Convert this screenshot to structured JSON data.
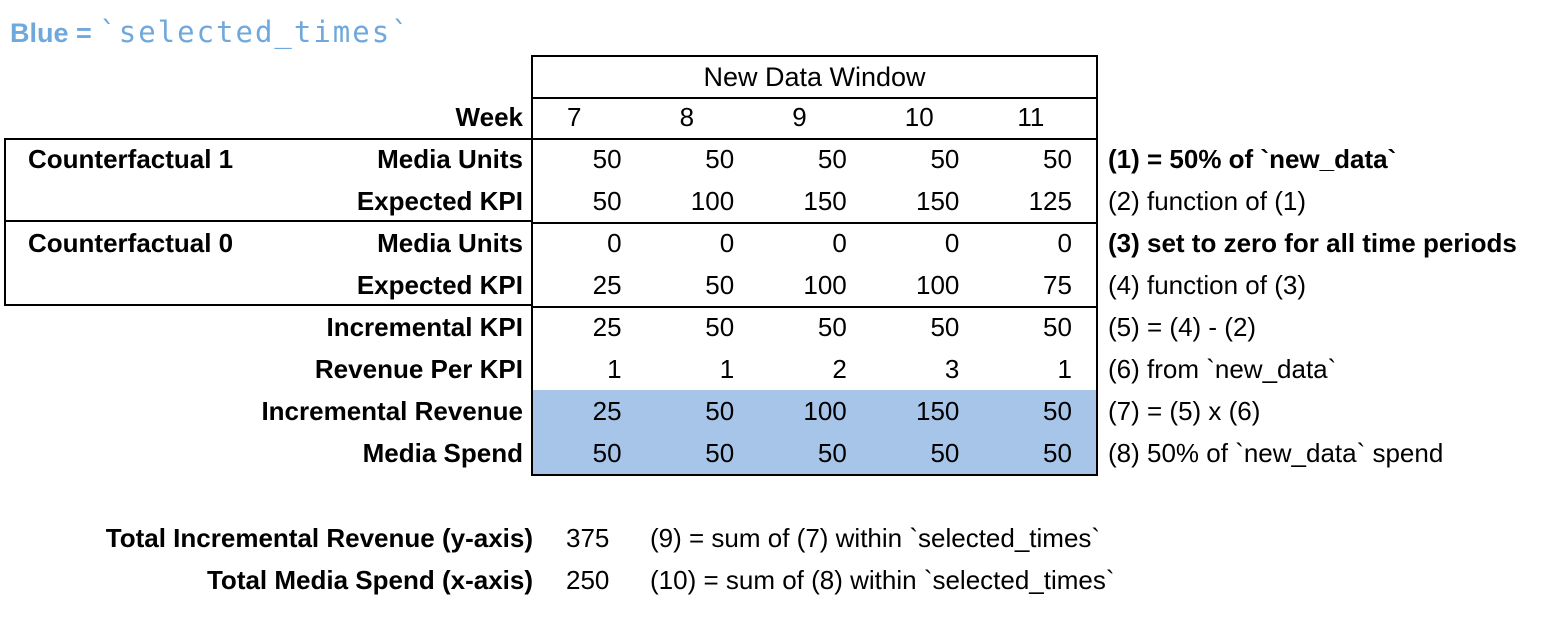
{
  "legend": {
    "label": "Blue =",
    "code": "`selected_times`"
  },
  "table": {
    "header": "New Data Window",
    "week_label": "Week",
    "weeks": [
      "7",
      "8",
      "9",
      "10",
      "11"
    ],
    "group1_label": "Counterfactual 1",
    "group2_label": "Counterfactual 0",
    "rows": [
      {
        "label": "Media Units",
        "values": [
          "50",
          "50",
          "50",
          "50",
          "50"
        ],
        "annotation": "(1) = 50% of `new_data`"
      },
      {
        "label": "Expected KPI",
        "values": [
          "50",
          "100",
          "150",
          "150",
          "125"
        ],
        "annotation": "(2) function of (1)"
      },
      {
        "label": "Media Units",
        "values": [
          "0",
          "0",
          "0",
          "0",
          "0"
        ],
        "annotation": "(3) set to zero for all time periods"
      },
      {
        "label": "Expected KPI",
        "values": [
          "25",
          "50",
          "100",
          "100",
          "75"
        ],
        "annotation": "(4) function of (3)"
      },
      {
        "label": "Incremental KPI",
        "values": [
          "25",
          "50",
          "50",
          "50",
          "50"
        ],
        "annotation": "(5) = (4) - (2)"
      },
      {
        "label": "Revenue Per KPI",
        "values": [
          "1",
          "1",
          "2",
          "3",
          "1"
        ],
        "annotation": "(6) from `new_data`"
      },
      {
        "label": "Incremental Revenue",
        "values": [
          "25",
          "50",
          "100",
          "150",
          "50"
        ],
        "annotation": "(7) = (5) x (6)"
      },
      {
        "label": "Media Spend",
        "values": [
          "50",
          "50",
          "50",
          "50",
          "50"
        ],
        "annotation": "(8) 50% of `new_data` spend"
      }
    ]
  },
  "totals": [
    {
      "label": "Total Incremental Revenue (y-axis)",
      "value": "375",
      "annotation": "(9) = sum of (7) within `selected_times`"
    },
    {
      "label": "Total Media Spend (x-axis)",
      "value": "250",
      "annotation": "(10) = sum of (8) within `selected_times`"
    }
  ],
  "colors": {
    "highlight_blue": "#a6c5e9",
    "legend_blue": "#6fa8dc"
  }
}
